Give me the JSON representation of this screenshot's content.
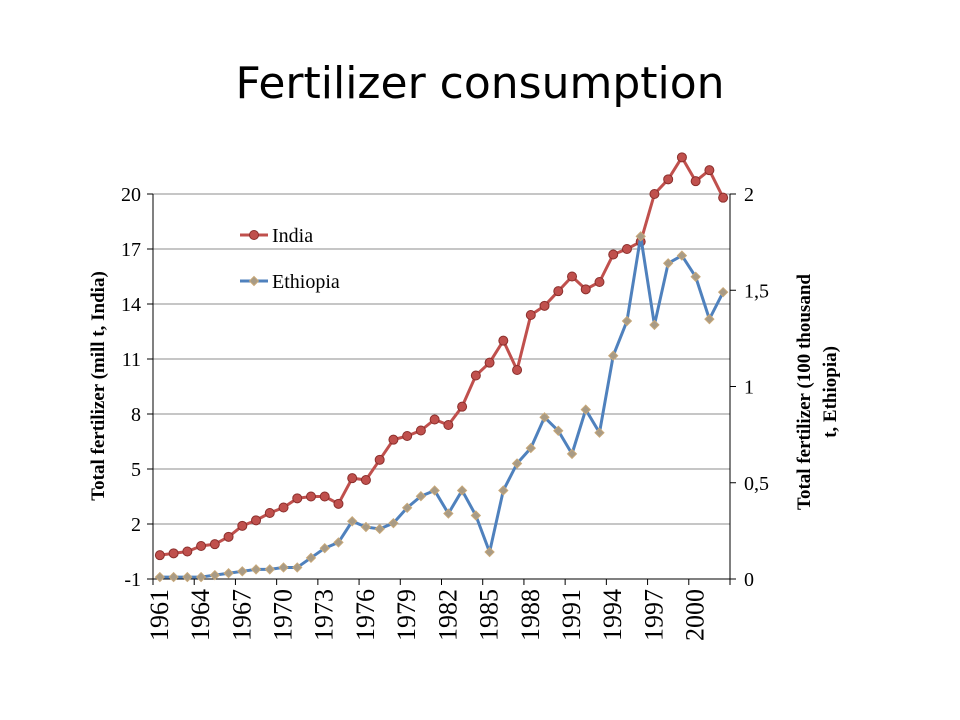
{
  "slide": {
    "title": "Fertilizer consumption"
  },
  "chart_data": {
    "type": "line",
    "title": "",
    "x": [
      1961,
      1962,
      1963,
      1964,
      1965,
      1966,
      1967,
      1968,
      1969,
      1970,
      1971,
      1972,
      1973,
      1974,
      1975,
      1976,
      1977,
      1978,
      1979,
      1980,
      1981,
      1982,
      1983,
      1984,
      1985,
      1986,
      1987,
      1988,
      1989,
      1990,
      1991,
      1992,
      1993,
      1994,
      1995,
      1996,
      1997,
      1998,
      1999,
      2000,
      2001,
      2002
    ],
    "x_tick_labels": [
      "1961",
      "1964",
      "1967",
      "1970",
      "1973",
      "1976",
      "1979",
      "1982",
      "1985",
      "1988",
      "1991",
      "1994",
      "1997",
      "2000"
    ],
    "xlabel": "",
    "ylabel_left": "Total fertilizer (mill t, India)",
    "ylabel_right": "Total fertilizer (100 thousand t, Ethiopia)",
    "ylim_left": [
      -1,
      20
    ],
    "yticks_left": [
      "20",
      "17",
      "14",
      "11",
      "8",
      "5",
      "2",
      "-1"
    ],
    "ylim_right": [
      0,
      2
    ],
    "yticks_right": [
      "2",
      "1,5",
      "1",
      "0,5",
      "0"
    ],
    "grid": "horizontal",
    "legend_position": "top-left",
    "series": [
      {
        "name": "India",
        "axis": "left",
        "color": "#c0504d",
        "marker": "circle",
        "values": [
          0.3,
          0.4,
          0.5,
          0.8,
          0.9,
          1.3,
          1.9,
          2.2,
          2.6,
          2.9,
          3.4,
          3.5,
          3.5,
          3.1,
          4.5,
          4.4,
          5.5,
          6.6,
          6.8,
          7.1,
          7.7,
          7.4,
          8.4,
          10.1,
          10.8,
          12.0,
          10.4,
          13.4,
          13.9,
          14.7,
          15.5,
          14.8,
          15.2,
          16.7,
          17.0,
          17.4,
          20.0,
          20.8,
          22.0,
          20.7,
          21.3,
          19.8
        ]
      },
      {
        "name": "Ethiopia",
        "axis": "right",
        "color": "#4f81bd",
        "marker": "diamond",
        "values": [
          0.01,
          0.01,
          0.01,
          0.01,
          0.02,
          0.03,
          0.04,
          0.05,
          0.05,
          0.06,
          0.06,
          0.11,
          0.16,
          0.19,
          0.3,
          0.27,
          0.26,
          0.29,
          0.37,
          0.43,
          0.46,
          0.34,
          0.46,
          0.33,
          0.14,
          0.46,
          0.6,
          0.68,
          0.84,
          0.77,
          0.65,
          0.88,
          0.76,
          1.16,
          1.34,
          1.78,
          1.32,
          1.64,
          1.68,
          1.57,
          1.35,
          1.49
        ]
      }
    ]
  }
}
